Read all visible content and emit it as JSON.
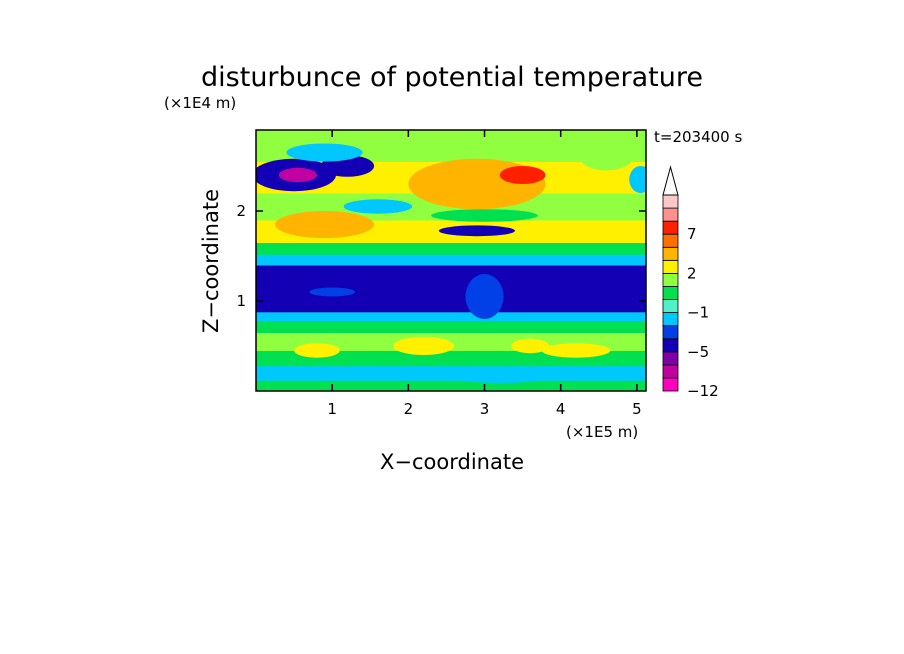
{
  "chart_data": {
    "type": "heatmap",
    "title": "disturbunce of potential temperature",
    "xlabel": "X−coordinate",
    "ylabel": "Z−coordinate",
    "x_unit": "(×1E5 m)",
    "y_unit": "(×1E4 m)",
    "time_label": "t=203400 s",
    "xlim": [
      0,
      5.12
    ],
    "ylim": [
      0,
      2.9
    ],
    "x_ticks": [
      {
        "value": 1,
        "label": "1"
      },
      {
        "value": 2,
        "label": "2"
      },
      {
        "value": 3,
        "label": "3"
      },
      {
        "value": 4,
        "label": "4"
      },
      {
        "value": 5,
        "label": "5"
      }
    ],
    "y_ticks": [
      {
        "value": 1,
        "label": "1"
      },
      {
        "value": 2,
        "label": "2"
      }
    ],
    "colorbar": {
      "levels": [
        -12,
        -9,
        -7,
        -5,
        -3,
        -2,
        -1,
        0,
        1,
        2,
        3,
        5,
        7,
        9,
        12
      ],
      "colors": [
        "#ff00c0",
        "#c000a0",
        "#8000a8",
        "#1400b4",
        "#0040e6",
        "#00c8ff",
        "#50f0c8",
        "#00e050",
        "#90ff40",
        "#fff000",
        "#ffb400",
        "#ff7000",
        "#ff2000",
        "#ff9090",
        "#ffc8c8"
      ],
      "extend_max": true,
      "labels": [
        {
          "level": 7,
          "label": "7"
        },
        {
          "level": 2,
          "label": "2"
        },
        {
          "level": -1,
          "label": "−1"
        },
        {
          "level": -5,
          "label": "−5"
        },
        {
          "level": -12,
          "label": "−12"
        }
      ]
    },
    "field_bands": [
      {
        "z_min": 0.0,
        "z_max": 0.12,
        "value": 0.5
      },
      {
        "z_min": 0.12,
        "z_max": 0.28,
        "value": -1.5
      },
      {
        "z_min": 0.28,
        "z_max": 0.45,
        "value": 0.5
      },
      {
        "z_min": 0.45,
        "z_max": 0.65,
        "value": 1.5
      },
      {
        "z_min": 0.65,
        "z_max": 0.78,
        "value": 0.5
      },
      {
        "z_min": 0.78,
        "z_max": 0.88,
        "value": -1.5
      },
      {
        "z_min": 0.88,
        "z_max": 1.1,
        "value": -4
      },
      {
        "z_min": 1.1,
        "z_max": 1.4,
        "value": -4
      },
      {
        "z_min": 1.4,
        "z_max": 1.52,
        "value": -1.5
      },
      {
        "z_min": 1.52,
        "z_max": 1.65,
        "value": 0.5
      },
      {
        "z_min": 1.65,
        "z_max": 1.9,
        "value": 2.5
      },
      {
        "z_min": 1.9,
        "z_max": 2.2,
        "value": 1.5
      },
      {
        "z_min": 2.2,
        "z_max": 2.55,
        "value": 2.5
      },
      {
        "z_min": 2.55,
        "z_max": 2.9,
        "value": 1.5
      }
    ],
    "field_features": [
      {
        "x": 0.5,
        "z": 2.4,
        "rx": 0.55,
        "rz": 0.18,
        "value": -4
      },
      {
        "x": 0.55,
        "z": 2.4,
        "rx": 0.25,
        "rz": 0.08,
        "value": -8
      },
      {
        "x": 1.2,
        "z": 2.5,
        "rx": 0.35,
        "rz": 0.12,
        "value": -4
      },
      {
        "x": 0.9,
        "z": 2.65,
        "rx": 0.5,
        "rz": 0.1,
        "value": -1.5
      },
      {
        "x": 0.9,
        "z": 1.85,
        "rx": 0.65,
        "rz": 0.15,
        "value": 4
      },
      {
        "x": 2.9,
        "z": 2.3,
        "rx": 0.9,
        "rz": 0.28,
        "value": 4
      },
      {
        "x": 3.5,
        "z": 2.4,
        "rx": 0.3,
        "rz": 0.1,
        "value": 8
      },
      {
        "x": 2.9,
        "z": 1.78,
        "rx": 0.5,
        "rz": 0.06,
        "value": -4
      },
      {
        "x": 4.6,
        "z": 2.6,
        "rx": 0.35,
        "rz": 0.15,
        "value": 1.5
      },
      {
        "x": 5.05,
        "z": 2.35,
        "rx": 0.15,
        "rz": 0.15,
        "value": -1.5
      },
      {
        "x": 1.6,
        "z": 2.05,
        "rx": 0.45,
        "rz": 0.08,
        "value": -1.5
      },
      {
        "x": 3.0,
        "z": 1.95,
        "rx": 0.7,
        "rz": 0.07,
        "value": 0.5
      },
      {
        "x": 0.8,
        "z": 0.45,
        "rx": 0.3,
        "rz": 0.08,
        "value": 2.5
      },
      {
        "x": 2.2,
        "z": 0.5,
        "rx": 0.4,
        "rz": 0.1,
        "value": 2.5
      },
      {
        "x": 4.2,
        "z": 0.45,
        "rx": 0.45,
        "rz": 0.08,
        "value": 2.5
      },
      {
        "x": 3.6,
        "z": 0.5,
        "rx": 0.25,
        "rz": 0.08,
        "value": 2.5
      },
      {
        "x": 1.4,
        "z": 0.2,
        "rx": 0.5,
        "rz": 0.07,
        "value": -1.5
      },
      {
        "x": 3.2,
        "z": 0.15,
        "rx": 0.6,
        "rz": 0.06,
        "value": -1.5
      },
      {
        "x": 3.0,
        "z": 1.05,
        "rx": 0.25,
        "rz": 0.25,
        "value": -2.5
      },
      {
        "x": 1.0,
        "z": 1.1,
        "rx": 0.3,
        "rz": 0.05,
        "value": -2.5
      }
    ]
  }
}
